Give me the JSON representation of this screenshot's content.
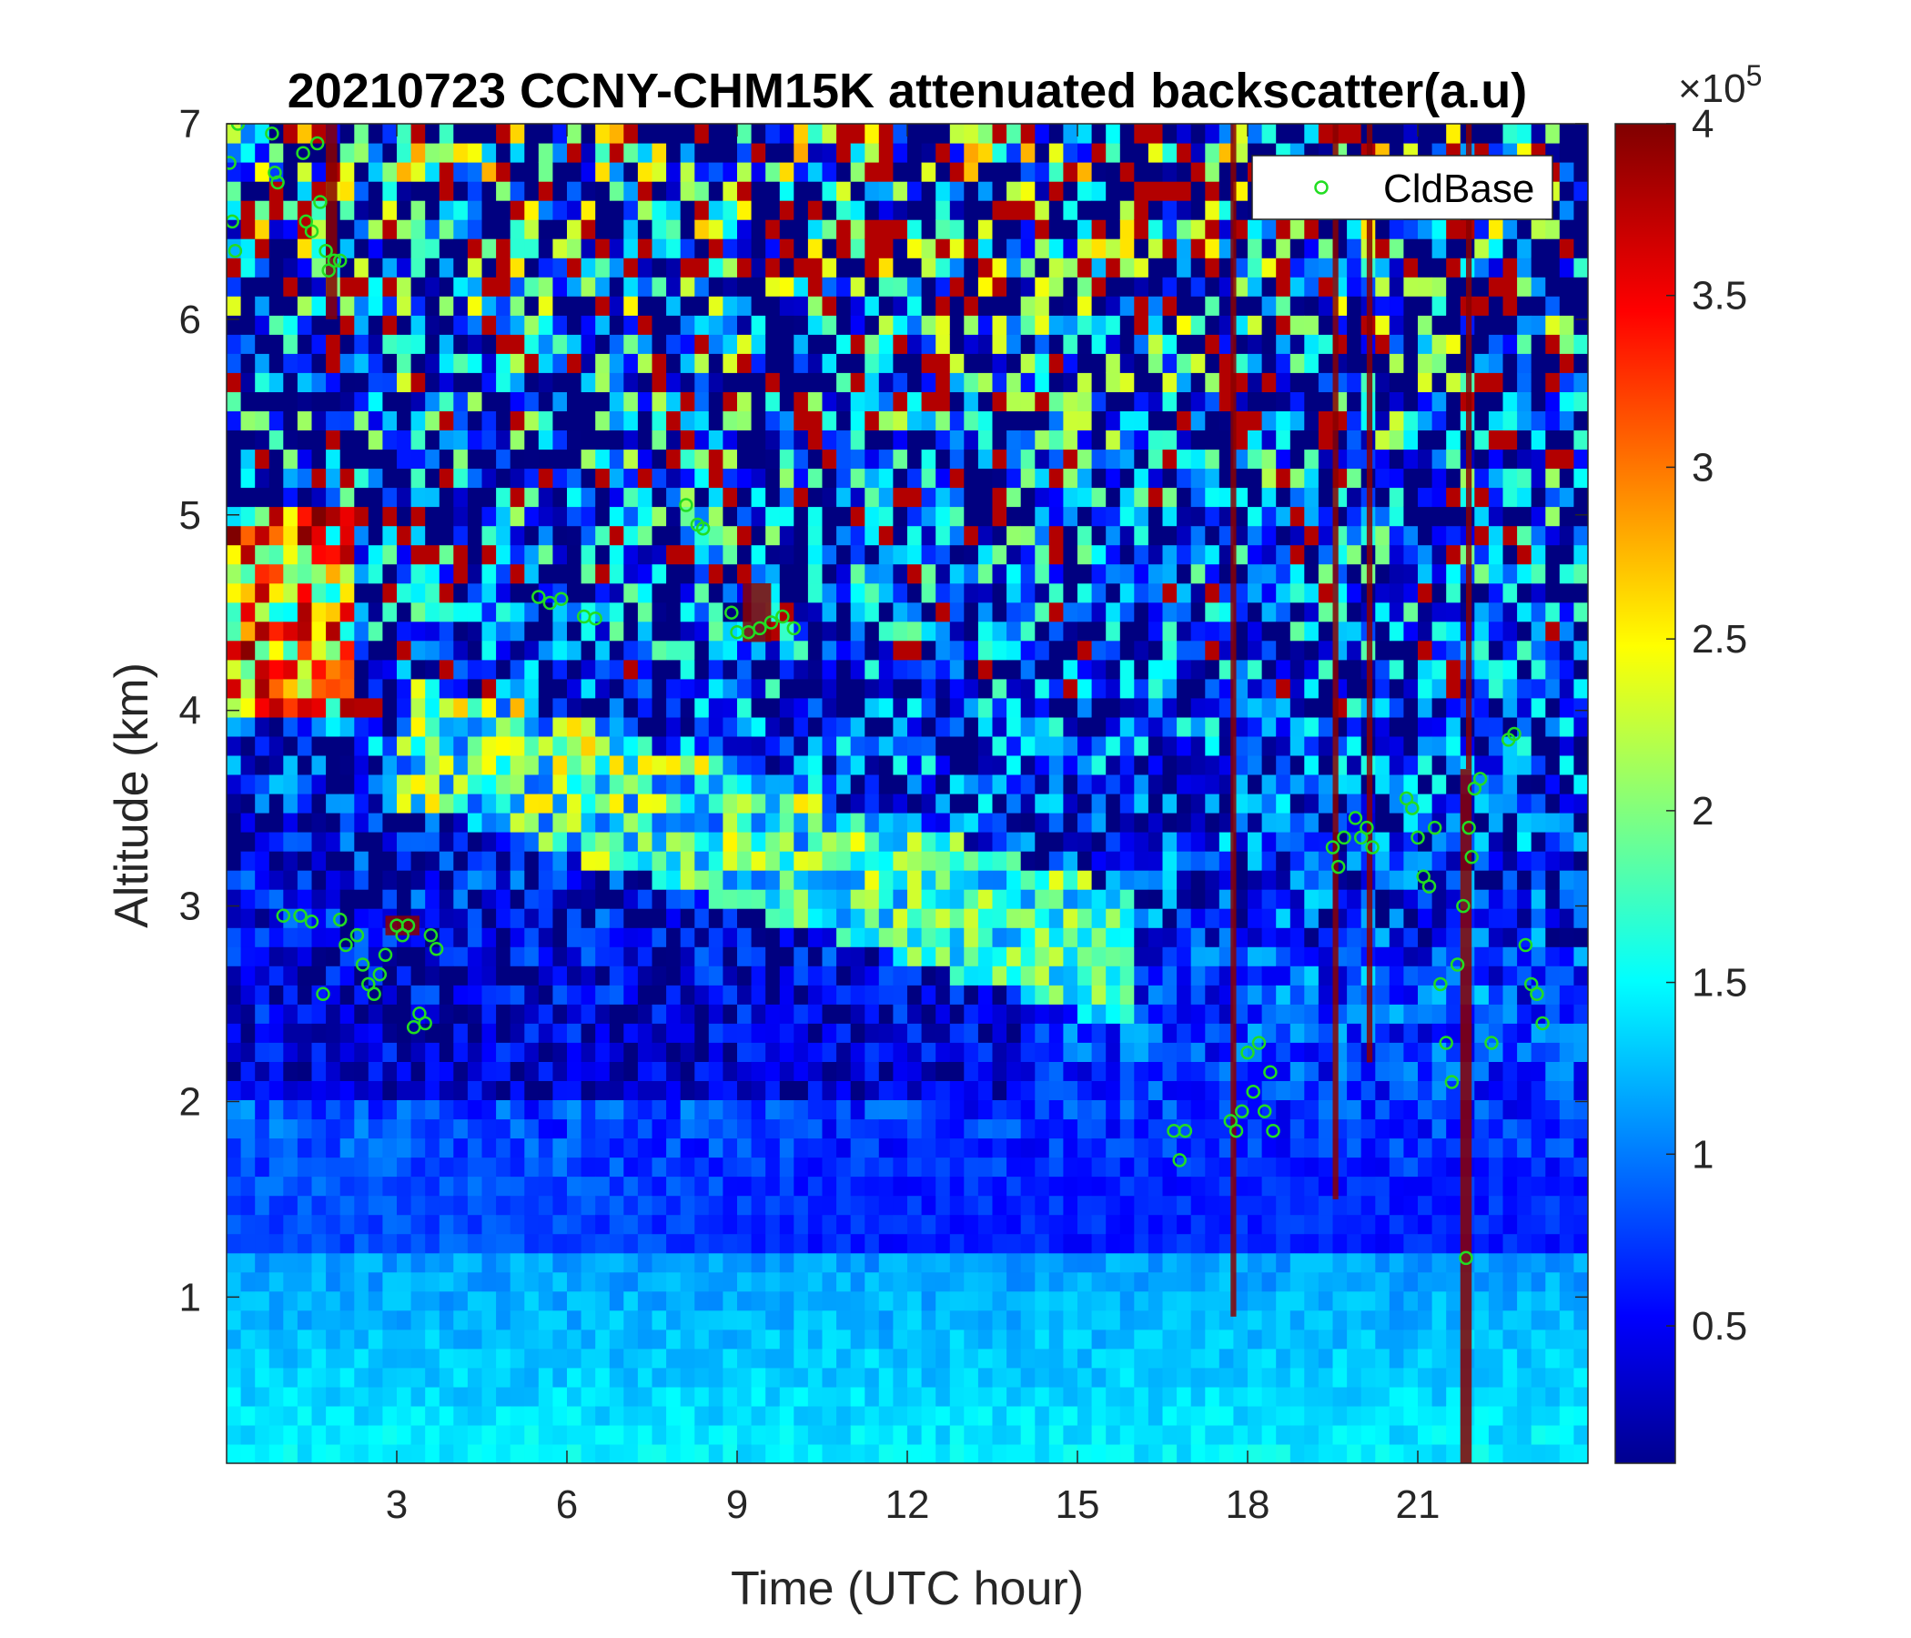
{
  "chart_data": {
    "type": "heatmap",
    "title": "20210723 CCNY-CHM15K attenuated backscatter(a.u)",
    "xlabel": "Time (UTC hour)",
    "ylabel": "Altitude (km)",
    "xlim": [
      0,
      24
    ],
    "ylim": [
      0.15,
      7
    ],
    "xticks": [
      "3",
      "6",
      "9",
      "12",
      "15",
      "18",
      "21"
    ],
    "yticks": [
      "1",
      "2",
      "3",
      "4",
      "5",
      "6",
      "7"
    ],
    "colormap": "jet",
    "colorbar": {
      "range": [
        0.1,
        4
      ],
      "ticks": [
        "0.5",
        "1",
        "1.5",
        "2",
        "2.5",
        "3",
        "3.5",
        "4"
      ],
      "exponent_label": "×10",
      "exponent": "5"
    },
    "legend": {
      "placement": "top-right",
      "entries": [
        "CldBase"
      ]
    },
    "series": [
      {
        "name": "CldBase",
        "marker": "open-circle",
        "color": "#22dd22",
        "points": [
          [
            0.05,
            6.8
          ],
          [
            0.1,
            6.5
          ],
          [
            0.15,
            6.35
          ],
          [
            0.2,
            7.0
          ],
          [
            0.8,
            6.95
          ],
          [
            0.85,
            6.75
          ],
          [
            0.9,
            6.7
          ],
          [
            1.35,
            6.85
          ],
          [
            1.4,
            6.5
          ],
          [
            1.5,
            6.45
          ],
          [
            1.6,
            6.9
          ],
          [
            1.65,
            6.6
          ],
          [
            1.75,
            6.35
          ],
          [
            1.8,
            6.25
          ],
          [
            1.9,
            6.3
          ],
          [
            2.0,
            6.3
          ],
          [
            1.0,
            2.95
          ],
          [
            1.3,
            2.95
          ],
          [
            1.5,
            2.92
          ],
          [
            1.7,
            2.55
          ],
          [
            2.0,
            2.93
          ],
          [
            2.1,
            2.8
          ],
          [
            2.3,
            2.85
          ],
          [
            2.4,
            2.7
          ],
          [
            2.5,
            2.6
          ],
          [
            2.6,
            2.55
          ],
          [
            2.7,
            2.65
          ],
          [
            2.8,
            2.75
          ],
          [
            3.0,
            2.9
          ],
          [
            3.1,
            2.85
          ],
          [
            3.2,
            2.9
          ],
          [
            3.3,
            2.38
          ],
          [
            3.4,
            2.45
          ],
          [
            3.5,
            2.4
          ],
          [
            3.6,
            2.85
          ],
          [
            3.7,
            2.78
          ],
          [
            5.5,
            4.58
          ],
          [
            5.7,
            4.55
          ],
          [
            5.9,
            4.57
          ],
          [
            6.3,
            4.48
          ],
          [
            6.5,
            4.47
          ],
          [
            8.1,
            5.05
          ],
          [
            8.3,
            4.95
          ],
          [
            8.4,
            4.93
          ],
          [
            8.9,
            4.5
          ],
          [
            9.0,
            4.4
          ],
          [
            9.2,
            4.4
          ],
          [
            9.4,
            4.42
          ],
          [
            9.6,
            4.45
          ],
          [
            9.8,
            4.48
          ],
          [
            10.0,
            4.42
          ],
          [
            16.7,
            1.85
          ],
          [
            16.8,
            1.7
          ],
          [
            16.9,
            1.85
          ],
          [
            17.7,
            1.9
          ],
          [
            17.8,
            1.85
          ],
          [
            17.9,
            1.95
          ],
          [
            18.0,
            2.25
          ],
          [
            18.1,
            2.05
          ],
          [
            18.2,
            2.3
          ],
          [
            18.3,
            1.95
          ],
          [
            18.4,
            2.15
          ],
          [
            18.45,
            1.85
          ],
          [
            19.5,
            3.3
          ],
          [
            19.6,
            3.2
          ],
          [
            19.7,
            3.35
          ],
          [
            19.9,
            3.45
          ],
          [
            20.0,
            3.35
          ],
          [
            20.1,
            3.4
          ],
          [
            20.2,
            3.3
          ],
          [
            20.8,
            3.55
          ],
          [
            20.9,
            3.5
          ],
          [
            21.0,
            3.35
          ],
          [
            21.1,
            3.15
          ],
          [
            21.2,
            3.1
          ],
          [
            21.3,
            3.4
          ],
          [
            21.4,
            2.6
          ],
          [
            21.5,
            2.3
          ],
          [
            21.6,
            2.1
          ],
          [
            21.7,
            2.7
          ],
          [
            21.8,
            3.0
          ],
          [
            21.9,
            3.4
          ],
          [
            21.95,
            3.25
          ],
          [
            22.0,
            3.6
          ],
          [
            22.1,
            3.65
          ],
          [
            22.3,
            2.3
          ],
          [
            21.85,
            1.2
          ],
          [
            22.6,
            3.85
          ],
          [
            22.7,
            3.88
          ],
          [
            22.9,
            2.8
          ],
          [
            23.0,
            2.6
          ],
          [
            23.1,
            2.55
          ],
          [
            23.2,
            2.4
          ]
        ]
      }
    ]
  }
}
